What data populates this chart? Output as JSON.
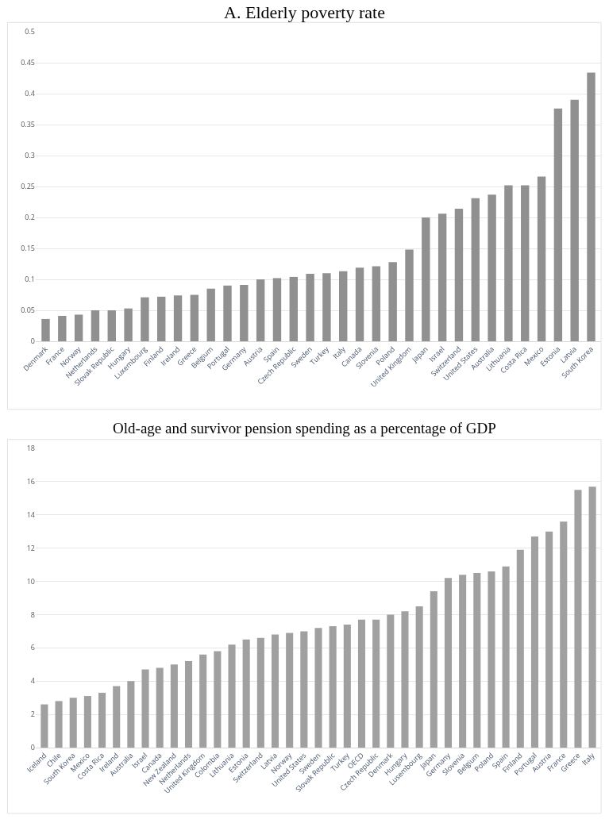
{
  "chart_data": [
    {
      "type": "bar",
      "title": "A. Elderly poverty rate",
      "categories": [
        "Denmark",
        "France",
        "Norway",
        "Netherlands",
        "Slovak Republic",
        "Hungary",
        "Luxembourg",
        "Finland",
        "Ireland",
        "Greece",
        "Belgium",
        "Portugal",
        "Germany",
        "Austria",
        "Spain",
        "Czech Republic",
        "Sweden",
        "Turkey",
        "Italy",
        "Canada",
        "Slovenia",
        "Poland",
        "United Kingdom",
        "Japan",
        "Israel",
        "Switzerland",
        "United States",
        "Australia",
        "Lithuania",
        "Costa Rica",
        "Mexico",
        "Estonia",
        "Latvia",
        "South Korea"
      ],
      "values": [
        0.036,
        0.041,
        0.043,
        0.05,
        0.05,
        0.053,
        0.071,
        0.072,
        0.074,
        0.075,
        0.085,
        0.09,
        0.091,
        0.1,
        0.102,
        0.104,
        0.109,
        0.11,
        0.113,
        0.119,
        0.121,
        0.128,
        0.148,
        0.2,
        0.206,
        0.214,
        0.231,
        0.237,
        0.252,
        0.252,
        0.266,
        0.376,
        0.39,
        0.434
      ],
      "color": "#909090",
      "ylim": [
        0,
        0.5
      ],
      "yticks": [
        0,
        0.05,
        0.1,
        0.15,
        0.2,
        0.25,
        0.3,
        0.35,
        0.4,
        0.45,
        0.5
      ],
      "grid": "y",
      "legend": false
    },
    {
      "type": "bar",
      "title": "Old-age and survivor pension spending as a percentage of GDP",
      "categories": [
        "Iceland",
        "Chile",
        "South Korea",
        "Mexico",
        "Costa Rica",
        "Ireland",
        "Australia",
        "Israel",
        "Canada",
        "New Zealand",
        "Netherlands",
        "United Kingdom",
        "Colombia",
        "Lithuania",
        "Estonia",
        "Switzerland",
        "Latvia",
        "Norway",
        "United States",
        "Sweden",
        "Slovak Republic",
        "Turkey",
        "OECD",
        "Czech Republic",
        "Denmark",
        "Hungary",
        "Lusembourg",
        "Japan",
        "Germany",
        "Slovenia",
        "Belgium",
        "Poland",
        "Spain",
        "Finland",
        "Portugal",
        "Austria",
        "France",
        "Greece",
        "Italy"
      ],
      "values": [
        2.6,
        2.8,
        3.0,
        3.1,
        3.3,
        3.7,
        4.0,
        4.7,
        4.8,
        5.0,
        5.2,
        5.6,
        5.8,
        6.2,
        6.5,
        6.6,
        6.8,
        6.9,
        7.0,
        7.2,
        7.3,
        7.4,
        7.7,
        7.7,
        8.0,
        8.2,
        8.5,
        9.4,
        10.2,
        10.4,
        10.5,
        10.6,
        10.9,
        11.9,
        12.7,
        13.0,
        13.6,
        15.5,
        15.7
      ],
      "color": "#a0a0a0",
      "ylim": [
        0,
        18
      ],
      "yticks": [
        0,
        2,
        4,
        6,
        8,
        10,
        12,
        14,
        16,
        18
      ],
      "grid": "y",
      "legend": false
    }
  ]
}
